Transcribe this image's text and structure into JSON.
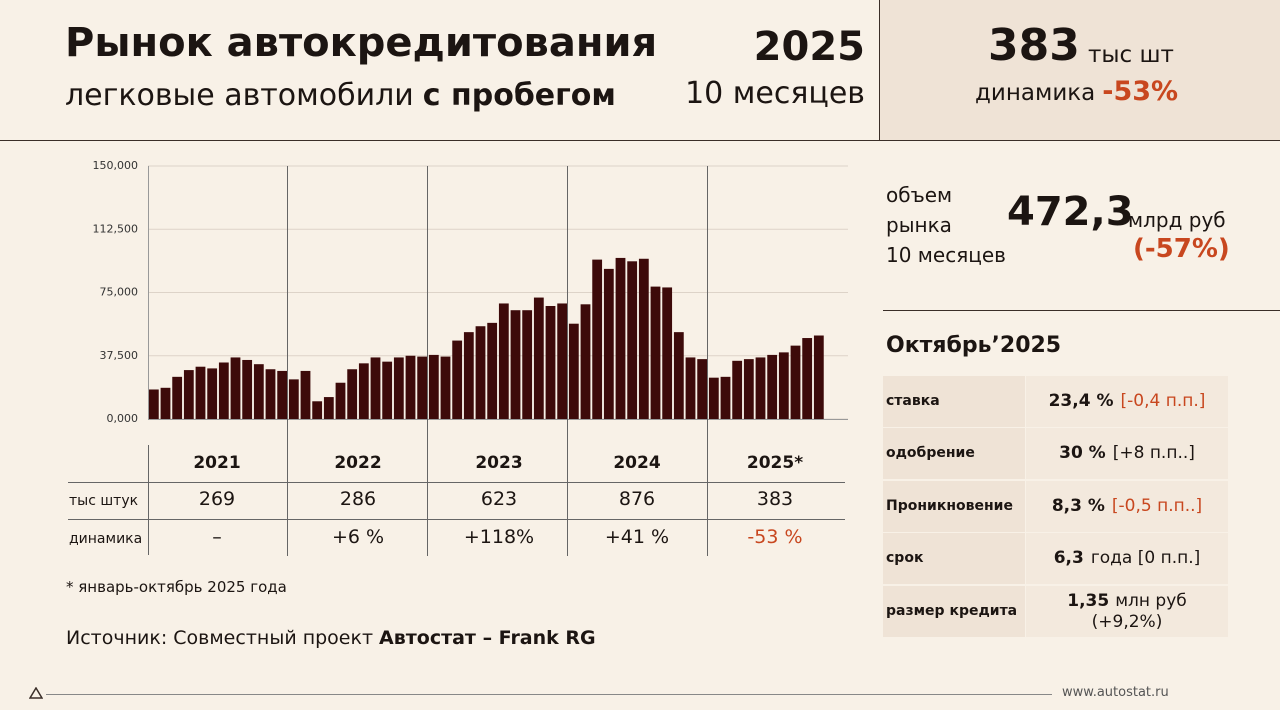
{
  "header": {
    "title": "Рынок автокредитования",
    "subtitle": "легковые автомобили",
    "subtitle_bold": "с пробегом",
    "year": "2025",
    "period": "10 месяцев"
  },
  "kpi": {
    "value": "383",
    "unit": "тыс шт",
    "change_label": "динамика",
    "change": "-53%"
  },
  "market": {
    "label_lines": [
      "объем",
      "рынка",
      "10 месяцев"
    ],
    "value": "472,3",
    "unit": "млрд руб",
    "change": "(-57%)"
  },
  "chart_data": {
    "type": "bar",
    "categories": [
      null,
      null,
      null,
      null,
      null,
      null,
      null,
      null,
      null,
      null,
      null,
      null,
      null,
      null,
      null,
      null,
      null,
      null,
      null,
      null,
      null,
      null,
      null,
      null,
      null,
      null,
      null,
      null,
      null,
      null,
      null,
      null,
      null,
      null,
      null,
      null,
      null,
      null,
      null,
      null,
      null,
      null,
      null,
      null,
      null,
      null,
      null,
      null,
      null,
      null,
      null,
      null,
      null,
      null,
      null,
      null,
      null,
      null,
      null,
      null
    ],
    "values": [
      17500,
      18500,
      25000,
      29000,
      31000,
      30000,
      33500,
      36500,
      35000,
      32500,
      29500,
      28500,
      23500,
      28500,
      10500,
      13000,
      21500,
      29500,
      33000,
      36500,
      34000,
      36500,
      37500,
      37000,
      38000,
      37000,
      46500,
      51500,
      55000,
      57000,
      68500,
      64500,
      64500,
      72000,
      67000,
      68500,
      56500,
      68000,
      94500,
      89000,
      95500,
      93500,
      95000,
      78500,
      78000,
      51500,
      36500,
      35500,
      24500,
      25000,
      34500,
      35500,
      36500,
      38000,
      39500,
      43500,
      48000,
      49500,
      null,
      null
    ],
    "color": "#3d0a0a",
    "ylim": [
      0,
      150000
    ],
    "yticks": [
      {
        "value": 0,
        "label": "0,000"
      },
      {
        "value": 37500,
        "label": "37,500"
      },
      {
        "value": 75000,
        "label": "75,000"
      },
      {
        "value": 112500,
        "label": "112,500"
      },
      {
        "value": 150000,
        "label": "150,000"
      }
    ],
    "grid": true
  },
  "table": {
    "columns": [
      "2021",
      "2022",
      "2023",
      "2024",
      "2025*"
    ],
    "rows": [
      {
        "label": "тыс штук",
        "cells": [
          "269",
          "286",
          "623",
          "876",
          "383"
        ]
      },
      {
        "label": "динамика",
        "cells": [
          "–",
          "+6 %",
          "+118%",
          "+41 %",
          "-53 %"
        ]
      }
    ]
  },
  "footnote": "* январь-октябрь 2025 года",
  "source": {
    "text": "Источник: Совместный проект",
    "bold": "Автостат – Frank RG"
  },
  "october": {
    "title": "Октябрь’2025",
    "rows": [
      {
        "label": "ставка",
        "value": "23,4 %",
        "note": "[-0,4 п.п.]",
        "note_color": "#c8471f"
      },
      {
        "label": "одобрение",
        "value": "30 %",
        "note": "[+8 п.п..]"
      },
      {
        "label": "Проникновение",
        "value": "8,3 %",
        "note": "[-0,5 п.п..]",
        "note_color": "#c8471f"
      },
      {
        "label": "срок",
        "value": "6,3",
        "note": "года [0 п.п.]"
      },
      {
        "label": "размер кредита",
        "value": "1,35",
        "unit": "млн руб",
        "note": "(+9,2%)"
      }
    ]
  },
  "footer": "www.autostat.ru"
}
